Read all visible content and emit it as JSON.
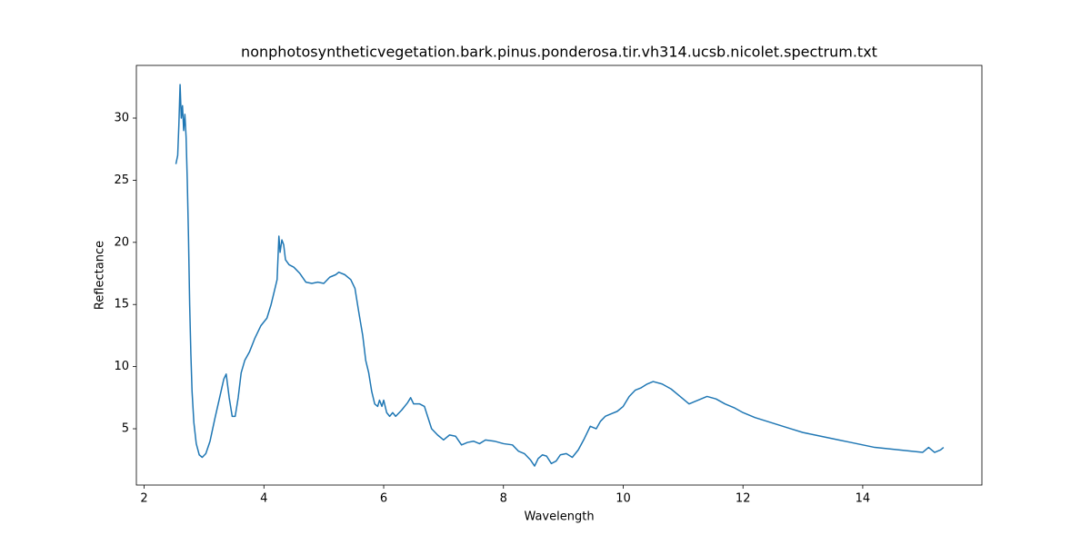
{
  "chart_data": {
    "type": "line",
    "title": "nonphotosyntheticvegetation.bark.pinus.ponderosa.tir.vh314.ucsb.nicolet.spectrum.txt",
    "x_label": "Wavelength",
    "y_label": "Reflectance",
    "xlim": [
      1.87,
      15.99
    ],
    "ylim": [
      0.47,
      34.24
    ],
    "xticks": [
      2,
      4,
      6,
      8,
      10,
      12,
      14
    ],
    "yticks": [
      5,
      10,
      15,
      20,
      25,
      30
    ],
    "grid": false,
    "series": [
      {
        "color": "#1f77b4",
        "x": [
          2.53,
          2.56,
          2.58,
          2.6,
          2.62,
          2.64,
          2.66,
          2.68,
          2.7,
          2.72,
          2.74,
          2.76,
          2.78,
          2.8,
          2.83,
          2.87,
          2.92,
          2.97,
          3.03,
          3.1,
          3.18,
          3.26,
          3.33,
          3.37,
          3.42,
          3.47,
          3.52,
          3.57,
          3.62,
          3.68,
          3.76,
          3.85,
          3.95,
          4.05,
          4.12,
          4.18,
          4.22,
          4.25,
          4.27,
          4.3,
          4.33,
          4.36,
          4.42,
          4.5,
          4.6,
          4.7,
          4.8,
          4.9,
          5.0,
          5.1,
          5.2,
          5.25,
          5.35,
          5.45,
          5.52,
          5.58,
          5.65,
          5.7,
          5.75,
          5.8,
          5.85,
          5.9,
          5.93,
          5.97,
          6.0,
          6.05,
          6.1,
          6.15,
          6.2,
          6.3,
          6.4,
          6.45,
          6.5,
          6.6,
          6.68,
          6.72,
          6.8,
          6.9,
          7.0,
          7.1,
          7.2,
          7.3,
          7.4,
          7.5,
          7.6,
          7.7,
          7.85,
          8.0,
          8.15,
          8.25,
          8.35,
          8.45,
          8.52,
          8.58,
          8.65,
          8.72,
          8.8,
          8.88,
          8.95,
          9.05,
          9.15,
          9.25,
          9.35,
          9.45,
          9.55,
          9.62,
          9.7,
          9.8,
          9.9,
          10.0,
          10.1,
          10.2,
          10.3,
          10.4,
          10.5,
          10.65,
          10.8,
          10.95,
          11.1,
          11.25,
          11.4,
          11.55,
          11.7,
          11.85,
          12.0,
          12.2,
          12.4,
          12.6,
          12.8,
          13.0,
          13.2,
          13.4,
          13.6,
          13.8,
          14.0,
          14.2,
          14.4,
          14.6,
          14.8,
          15.0,
          15.1,
          15.2,
          15.3,
          15.35
        ],
        "values": [
          26.3,
          27.0,
          29.5,
          32.7,
          30.0,
          31.0,
          29.0,
          30.3,
          28.5,
          25.0,
          20.5,
          15.0,
          11.0,
          8.0,
          5.5,
          3.8,
          2.9,
          2.7,
          3.0,
          4.0,
          5.8,
          7.5,
          9.0,
          9.4,
          7.5,
          6.0,
          6.0,
          7.5,
          9.5,
          10.5,
          11.2,
          12.3,
          13.3,
          13.9,
          15.0,
          16.2,
          17.0,
          20.5,
          19.2,
          20.2,
          19.8,
          18.6,
          18.2,
          18.0,
          17.5,
          16.8,
          16.7,
          16.8,
          16.7,
          17.2,
          17.4,
          17.6,
          17.4,
          17.0,
          16.3,
          14.5,
          12.5,
          10.5,
          9.5,
          8.0,
          7.0,
          6.8,
          7.3,
          6.8,
          7.3,
          6.3,
          6.0,
          6.3,
          6.0,
          6.5,
          7.1,
          7.5,
          7.0,
          7.0,
          6.8,
          6.2,
          5.0,
          4.5,
          4.1,
          4.5,
          4.4,
          3.7,
          3.9,
          4.0,
          3.8,
          4.1,
          4.0,
          3.8,
          3.7,
          3.2,
          3.0,
          2.5,
          2.0,
          2.6,
          2.9,
          2.8,
          2.2,
          2.4,
          2.9,
          3.0,
          2.7,
          3.3,
          4.2,
          5.2,
          5.0,
          5.6,
          6.0,
          6.2,
          6.4,
          6.8,
          7.6,
          8.1,
          8.3,
          8.6,
          8.8,
          8.6,
          8.2,
          7.6,
          7.0,
          7.3,
          7.6,
          7.4,
          7.0,
          6.7,
          6.3,
          5.9,
          5.6,
          5.3,
          5.0,
          4.7,
          4.5,
          4.3,
          4.1,
          3.9,
          3.7,
          3.5,
          3.4,
          3.3,
          3.2,
          3.1,
          3.5,
          3.1,
          3.3,
          3.5
        ]
      }
    ]
  }
}
